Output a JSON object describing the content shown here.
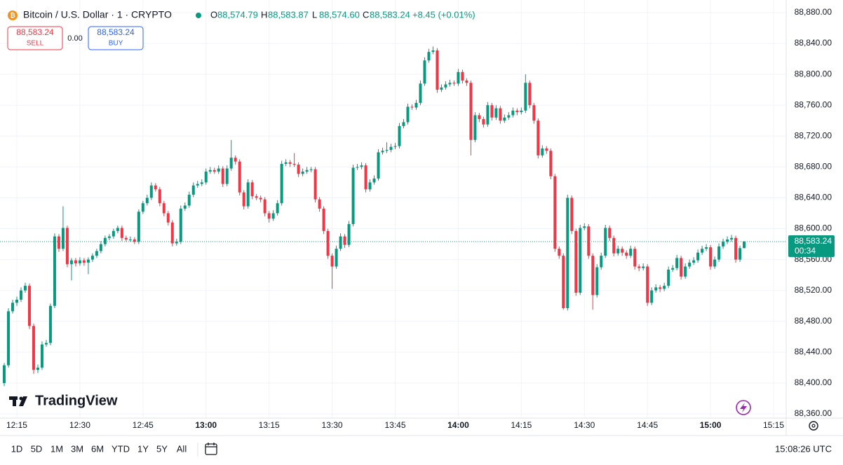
{
  "header": {
    "symbol": "Bitcoin / U.S. Dollar · 1 · CRYPTO",
    "ohlc": [
      {
        "label": "O",
        "value": "88,574.79"
      },
      {
        "label": "H",
        "value": "88,583.87"
      },
      {
        "label": "L",
        "value": "88,574.60"
      },
      {
        "label": "C",
        "value": "88,583.24"
      }
    ],
    "change": "+8.45 (+0.01%)"
  },
  "trade": {
    "sell_price": "88,583.24",
    "sell_label": "SELL",
    "spread": "0.00",
    "buy_price": "88,583.24",
    "buy_label": "BUY"
  },
  "chart_data": {
    "type": "candlestick",
    "up_color": "#089981",
    "down_color": "#f23645",
    "x": [
      "12:12",
      "12:13",
      "12:14",
      "12:15",
      "12:16",
      "12:17",
      "12:18",
      "12:19",
      "12:20",
      "12:21",
      "12:22",
      "12:23",
      "12:24",
      "12:25",
      "12:26",
      "12:27",
      "12:28",
      "12:29",
      "12:30",
      "12:31",
      "12:32",
      "12:33",
      "12:34",
      "12:35",
      "12:36",
      "12:37",
      "12:38",
      "12:39",
      "12:40",
      "12:41",
      "12:42",
      "12:43",
      "12:44",
      "12:45",
      "12:46",
      "12:47",
      "12:48",
      "12:49",
      "12:50",
      "12:51",
      "12:52",
      "12:53",
      "12:54",
      "12:55",
      "12:56",
      "12:57",
      "12:58",
      "12:59",
      "13:00",
      "13:01",
      "13:02",
      "13:03",
      "13:04",
      "13:05",
      "13:06",
      "13:07",
      "13:08",
      "13:09",
      "13:10",
      "13:11",
      "13:12",
      "13:13",
      "13:14",
      "13:15",
      "13:16",
      "13:17",
      "13:18",
      "13:19",
      "13:20",
      "13:21",
      "13:22",
      "13:23",
      "13:24",
      "13:25",
      "13:26",
      "13:27",
      "13:28",
      "13:29",
      "13:30",
      "13:31",
      "13:32",
      "13:33",
      "13:34",
      "13:35",
      "13:36",
      "13:37",
      "13:38",
      "13:39",
      "13:40",
      "13:41",
      "13:42",
      "13:43",
      "13:44",
      "13:45",
      "13:46",
      "13:47",
      "13:48",
      "13:49",
      "13:50",
      "13:51",
      "13:52",
      "13:53",
      "13:54",
      "13:55",
      "13:56",
      "13:57",
      "13:58",
      "13:59",
      "14:00",
      "14:01",
      "14:02",
      "14:03",
      "14:04",
      "14:05",
      "14:06",
      "14:07",
      "14:08",
      "14:09",
      "14:10",
      "14:11",
      "14:12",
      "14:13",
      "14:14",
      "14:15",
      "14:16",
      "14:17",
      "14:18",
      "14:19",
      "14:20",
      "14:21",
      "14:22",
      "14:23",
      "14:24",
      "14:25",
      "14:26",
      "14:27",
      "14:28",
      "14:29",
      "14:30",
      "14:31",
      "14:32",
      "14:33",
      "14:34",
      "14:35",
      "14:36",
      "14:37",
      "14:38",
      "14:39",
      "14:40",
      "14:41",
      "14:42",
      "14:43",
      "14:44",
      "14:45",
      "14:46",
      "14:47",
      "14:48",
      "14:49",
      "14:50",
      "14:51",
      "14:52",
      "14:53",
      "14:54",
      "14:55",
      "14:56",
      "14:57",
      "14:58",
      "14:59",
      "15:00",
      "15:01",
      "15:02",
      "15:03",
      "15:04",
      "15:05",
      "15:06",
      "15:07",
      "15:08"
    ],
    "candles": [
      [
        88400,
        88426,
        88396,
        88423
      ],
      [
        88423,
        88497,
        88420,
        88493
      ],
      [
        88493,
        88508,
        88490,
        88504
      ],
      [
        88504,
        88512,
        88500,
        88508
      ],
      [
        88508,
        88524,
        88505,
        88520
      ],
      [
        88520,
        88530,
        88517,
        88526
      ],
      [
        88526,
        88529,
        88470,
        88474
      ],
      [
        88474,
        88477,
        88412,
        88417
      ],
      [
        88417,
        88424,
        88413,
        88420
      ],
      [
        88420,
        88454,
        88417,
        88450
      ],
      [
        88450,
        88456,
        88447,
        88452
      ],
      [
        88452,
        88503,
        88449,
        88500
      ],
      [
        88500,
        88594,
        88497,
        88590
      ],
      [
        88590,
        88593,
        88570,
        88574
      ],
      [
        88574,
        88629,
        88571,
        88601
      ],
      [
        88601,
        88604,
        88550,
        88554
      ],
      [
        88554,
        88562,
        88533,
        88559
      ],
      [
        88559,
        88562,
        88551,
        88555
      ],
      [
        88555,
        88563,
        88552,
        88559
      ],
      [
        88559,
        88562,
        88552,
        88556
      ],
      [
        88556,
        88563,
        88541,
        88560
      ],
      [
        88560,
        88568,
        88557,
        88565
      ],
      [
        88565,
        88574,
        88562,
        88571
      ],
      [
        88571,
        88584,
        88568,
        88580
      ],
      [
        88580,
        88591,
        88577,
        88588
      ],
      [
        88588,
        88593,
        88585,
        88590
      ],
      [
        88590,
        88600,
        88587,
        88597
      ],
      [
        88597,
        88604,
        88594,
        88601
      ],
      [
        88601,
        88604,
        88584,
        88588
      ],
      [
        88588,
        88591,
        88583,
        88586
      ],
      [
        88586,
        88590,
        88583,
        88586
      ],
      [
        88586,
        88589,
        88580,
        88583
      ],
      [
        88583,
        88625,
        88580,
        88622
      ],
      [
        88622,
        88636,
        88619,
        88633
      ],
      [
        88633,
        88644,
        88630,
        88640
      ],
      [
        88640,
        88660,
        88637,
        88656
      ],
      [
        88656,
        88659,
        88648,
        88651
      ],
      [
        88651,
        88654,
        88629,
        88633
      ],
      [
        88633,
        88636,
        88616,
        88620
      ],
      [
        88620,
        88623,
        88604,
        88608
      ],
      [
        88608,
        88611,
        88577,
        88581
      ],
      [
        88581,
        88587,
        88578,
        88583
      ],
      [
        88583,
        88630,
        88580,
        88626
      ],
      [
        88626,
        88634,
        88623,
        88630
      ],
      [
        88630,
        88648,
        88627,
        88644
      ],
      [
        88644,
        88660,
        88641,
        88656
      ],
      [
        88656,
        88662,
        88653,
        88658
      ],
      [
        88658,
        88664,
        88655,
        88660
      ],
      [
        88660,
        88678,
        88657,
        88674
      ],
      [
        88674,
        88680,
        88671,
        88676
      ],
      [
        88676,
        88679,
        88671,
        88674
      ],
      [
        88674,
        88682,
        88671,
        88678
      ],
      [
        88678,
        88681,
        88654,
        88658
      ],
      [
        88658,
        88682,
        88655,
        88678
      ],
      [
        88678,
        88715,
        88675,
        88692
      ],
      [
        88692,
        88695,
        88683,
        88687
      ],
      [
        88687,
        88690,
        88643,
        88647
      ],
      [
        88647,
        88650,
        88625,
        88629
      ],
      [
        88629,
        88664,
        88626,
        88660
      ],
      [
        88660,
        88663,
        88638,
        88642
      ],
      [
        88642,
        88645,
        88637,
        88640
      ],
      [
        88640,
        88643,
        88634,
        88638
      ],
      [
        88638,
        88641,
        88616,
        88620
      ],
      [
        88620,
        88623,
        88608,
        88613
      ],
      [
        88613,
        88624,
        88610,
        88620
      ],
      [
        88620,
        88637,
        88617,
        88633
      ],
      [
        88633,
        88688,
        88630,
        88684
      ],
      [
        88684,
        88690,
        88681,
        88686
      ],
      [
        88686,
        88689,
        88680,
        88684
      ],
      [
        88684,
        88698,
        88680,
        88683
      ],
      [
        88683,
        88686,
        88667,
        88671
      ],
      [
        88671,
        88678,
        88668,
        88674
      ],
      [
        88674,
        88680,
        88671,
        88676
      ],
      [
        88676,
        88680,
        88673,
        88677
      ],
      [
        88677,
        88680,
        88634,
        88638
      ],
      [
        88638,
        88641,
        88622,
        88626
      ],
      [
        88626,
        88629,
        88593,
        88597
      ],
      [
        88597,
        88600,
        88561,
        88565
      ],
      [
        88565,
        88568,
        88522,
        88551
      ],
      [
        88551,
        88578,
        88548,
        88574
      ],
      [
        88574,
        88594,
        88571,
        88590
      ],
      [
        88590,
        88593,
        88575,
        88579
      ],
      [
        88579,
        88610,
        88576,
        88606
      ],
      [
        88606,
        88683,
        88603,
        88679
      ],
      [
        88679,
        88684,
        88676,
        88680
      ],
      [
        88680,
        88686,
        88677,
        88682
      ],
      [
        88682,
        88685,
        88647,
        88651
      ],
      [
        88651,
        88664,
        88648,
        88660
      ],
      [
        88660,
        88669,
        88657,
        88665
      ],
      [
        88665,
        88703,
        88662,
        88699
      ],
      [
        88699,
        88705,
        88696,
        88701
      ],
      [
        88701,
        88712,
        88698,
        88702
      ],
      [
        88702,
        88710,
        88699,
        88706
      ],
      [
        88706,
        88711,
        88703,
        88707
      ],
      [
        88707,
        88737,
        88704,
        88733
      ],
      [
        88733,
        88742,
        88730,
        88738
      ],
      [
        88738,
        88762,
        88735,
        88758
      ],
      [
        88758,
        88761,
        88754,
        88757
      ],
      [
        88757,
        88767,
        88754,
        88763
      ],
      [
        88763,
        88792,
        88760,
        88788
      ],
      [
        88788,
        88822,
        88785,
        88818
      ],
      [
        88818,
        88833,
        88815,
        88829
      ],
      [
        88829,
        88836,
        88826,
        88831
      ],
      [
        88831,
        88834,
        88776,
        88780
      ],
      [
        88780,
        88787,
        88777,
        88783
      ],
      [
        88783,
        88791,
        88780,
        88787
      ],
      [
        88787,
        88793,
        88784,
        88789
      ],
      [
        88789,
        88792,
        88785,
        88788
      ],
      [
        88788,
        88807,
        88785,
        88803
      ],
      [
        88803,
        88806,
        88788,
        88792
      ],
      [
        88792,
        88795,
        88785,
        88789
      ],
      [
        88789,
        88792,
        88695,
        88715
      ],
      [
        88715,
        88751,
        88712,
        88747
      ],
      [
        88747,
        88750,
        88738,
        88742
      ],
      [
        88742,
        88745,
        88731,
        88735
      ],
      [
        88735,
        88764,
        88732,
        88760
      ],
      [
        88760,
        88763,
        88740,
        88744
      ],
      [
        88744,
        88760,
        88741,
        88756
      ],
      [
        88756,
        88759,
        88736,
        88740
      ],
      [
        88740,
        88748,
        88737,
        88744
      ],
      [
        88744,
        88751,
        88741,
        88747
      ],
      [
        88747,
        88757,
        88744,
        88753
      ],
      [
        88753,
        88756,
        88747,
        88751
      ],
      [
        88751,
        88757,
        88748,
        88753
      ],
      [
        88753,
        88800,
        88750,
        88789
      ],
      [
        88789,
        88792,
        88756,
        88760
      ],
      [
        88760,
        88763,
        88736,
        88740
      ],
      [
        88740,
        88743,
        88691,
        88695
      ],
      [
        88695,
        88708,
        88692,
        88704
      ],
      [
        88704,
        88707,
        88697,
        88701
      ],
      [
        88701,
        88704,
        88664,
        88668
      ],
      [
        88668,
        88671,
        88570,
        88574
      ],
      [
        88574,
        88577,
        88561,
        88565
      ],
      [
        88565,
        88568,
        88495,
        88497
      ],
      [
        88497,
        88644,
        88494,
        88640
      ],
      [
        88640,
        88643,
        88593,
        88597
      ],
      [
        88597,
        88600,
        88513,
        88517
      ],
      [
        88517,
        88605,
        88514,
        88601
      ],
      [
        88601,
        88607,
        88598,
        88603
      ],
      [
        88603,
        88606,
        88561,
        88565
      ],
      [
        88565,
        88568,
        88495,
        88514
      ],
      [
        88514,
        88554,
        88511,
        88550
      ],
      [
        88550,
        88569,
        88547,
        88565
      ],
      [
        88565,
        88605,
        88562,
        88601
      ],
      [
        88601,
        88604,
        88584,
        88588
      ],
      [
        88588,
        88591,
        88564,
        88568
      ],
      [
        88568,
        88578,
        88565,
        88574
      ],
      [
        88574,
        88577,
        88565,
        88569
      ],
      [
        88569,
        88572,
        88561,
        88565
      ],
      [
        88565,
        88578,
        88562,
        88574
      ],
      [
        88574,
        88577,
        88547,
        88551
      ],
      [
        88551,
        88554,
        88545,
        88549
      ],
      [
        88549,
        88555,
        88546,
        88551
      ],
      [
        88551,
        88554,
        88500,
        88504
      ],
      [
        88504,
        88524,
        88501,
        88520
      ],
      [
        88520,
        88528,
        88517,
        88524
      ],
      [
        88524,
        88527,
        88518,
        88522
      ],
      [
        88522,
        88530,
        88519,
        88526
      ],
      [
        88526,
        88551,
        88523,
        88547
      ],
      [
        88547,
        88553,
        88544,
        88549
      ],
      [
        88549,
        88566,
        88546,
        88562
      ],
      [
        88562,
        88565,
        88534,
        88538
      ],
      [
        88538,
        88555,
        88535,
        88551
      ],
      [
        88551,
        88560,
        88548,
        88556
      ],
      [
        88556,
        88563,
        88553,
        88559
      ],
      [
        88559,
        88573,
        88556,
        88569
      ],
      [
        88569,
        88578,
        88566,
        88574
      ],
      [
        88574,
        88580,
        88571,
        88576
      ],
      [
        88576,
        88579,
        88547,
        88551
      ],
      [
        88551,
        88564,
        88548,
        88560
      ],
      [
        88560,
        88581,
        88557,
        88577
      ],
      [
        88577,
        88587,
        88574,
        88583
      ],
      [
        88583,
        88590,
        88580,
        88586
      ],
      [
        88586,
        88592,
        88583,
        88588
      ],
      [
        88588,
        88591,
        88556,
        88560
      ],
      [
        88560,
        88578,
        88557,
        88574.79
      ],
      [
        88574.79,
        88583.87,
        88574.6,
        88583.24
      ]
    ],
    "xlim": [
      "12:11",
      "15:18"
    ],
    "xticks": [
      "12:15",
      "12:30",
      "12:45",
      "13:00",
      "13:15",
      "13:30",
      "13:45",
      "14:00",
      "14:15",
      "14:30",
      "14:45",
      "15:00",
      "15:15"
    ],
    "ylim": [
      88354.6,
      88896.3
    ],
    "yticks": [
      {
        "value": 88360,
        "label": "88,360.00"
      },
      {
        "value": 88400,
        "label": "88,400.00"
      },
      {
        "value": 88440,
        "label": "88,440.00"
      },
      {
        "value": 88480,
        "label": "88,480.00"
      },
      {
        "value": 88520,
        "label": "88,520.00"
      },
      {
        "value": 88560,
        "label": "88,560.00"
      },
      {
        "value": 88600,
        "label": "88,600.00"
      },
      {
        "value": 88640,
        "label": "88,640.00"
      },
      {
        "value": 88680,
        "label": "88,680.00"
      },
      {
        "value": 88720,
        "label": "88,720.00"
      },
      {
        "value": 88760,
        "label": "88,760.00"
      },
      {
        "value": 88800,
        "label": "88,800.00"
      },
      {
        "value": 88840,
        "label": "88,840.00"
      },
      {
        "value": 88880,
        "label": "88,880.00"
      }
    ],
    "grid": true,
    "last_price": {
      "value": 88583.24,
      "label": "88,583.24"
    },
    "countdown": "00:34",
    "watermark": "TradingView"
  },
  "toolbar": {
    "ranges": [
      "1D",
      "5D",
      "1M",
      "3M",
      "6M",
      "YTD",
      "1Y",
      "5Y",
      "All"
    ],
    "clock": "15:08:26 UTC"
  }
}
